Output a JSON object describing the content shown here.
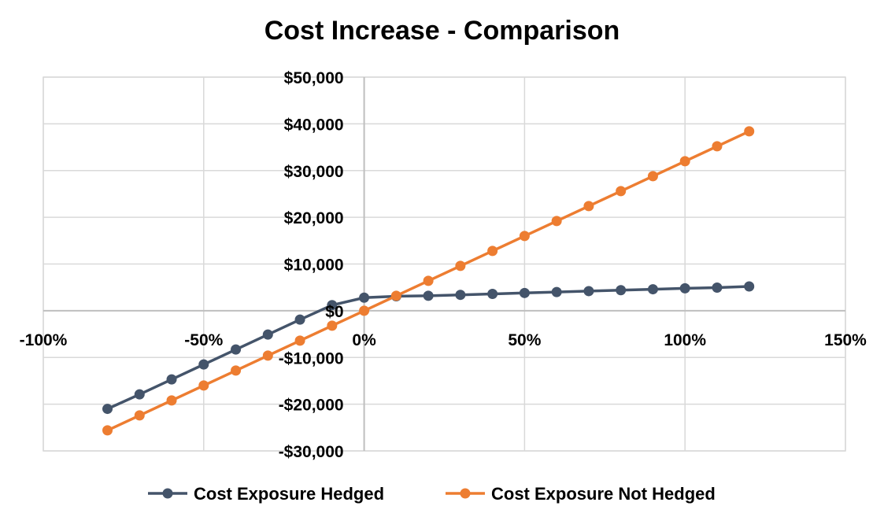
{
  "chart_data": {
    "type": "scatter",
    "title": "Cost Increase - Comparison",
    "xlabel": "",
    "ylabel": "",
    "xlim": [
      -1.0,
      1.5
    ],
    "ylim": [
      -30000,
      50000
    ],
    "x_ticks": [
      -1.0,
      -0.5,
      0,
      0.5,
      1.0,
      1.5
    ],
    "x_tick_labels": [
      "-100%",
      "-50%",
      "0%",
      "50%",
      "100%",
      "150%"
    ],
    "y_ticks": [
      50000,
      40000,
      30000,
      20000,
      10000,
      0,
      -10000,
      -20000,
      -30000
    ],
    "y_tick_labels": [
      "$50,000",
      "$40,000",
      "$30,000",
      "$20,000",
      "$10,000",
      "$0",
      "-$10,000",
      "-$20,000",
      "-$30,000"
    ],
    "grid": true,
    "legend_position": "bottom",
    "series": [
      {
        "name": "Cost Exposure Hedged",
        "color": "#44546a",
        "x": [
          -0.8,
          -0.7,
          -0.6,
          -0.5,
          -0.4,
          -0.3,
          -0.2,
          -0.1,
          0.0,
          0.1,
          0.2,
          0.3,
          0.4,
          0.5,
          0.6,
          0.7,
          0.8,
          0.9,
          1.0,
          1.1,
          1.2
        ],
        "y": [
          -21000,
          -17900,
          -14700,
          -11500,
          -8300,
          -5100,
          -1900,
          1200,
          2800,
          3100,
          3200,
          3400,
          3600,
          3800,
          4000,
          4200,
          4400,
          4600,
          4800,
          4950,
          5200
        ]
      },
      {
        "name": "Cost Exposure Not Hedged",
        "color": "#ed7d31",
        "x": [
          -0.8,
          -0.7,
          -0.6,
          -0.5,
          -0.4,
          -0.3,
          -0.2,
          -0.1,
          0.0,
          0.1,
          0.2,
          0.3,
          0.4,
          0.5,
          0.6,
          0.7,
          0.8,
          0.9,
          1.0,
          1.1,
          1.2
        ],
        "y": [
          -25600,
          -22400,
          -19200,
          -16000,
          -12800,
          -9600,
          -6400,
          -3200,
          0,
          3200,
          6400,
          9600,
          12800,
          16000,
          19200,
          22400,
          25600,
          28800,
          32000,
          35200,
          38400
        ]
      }
    ]
  }
}
